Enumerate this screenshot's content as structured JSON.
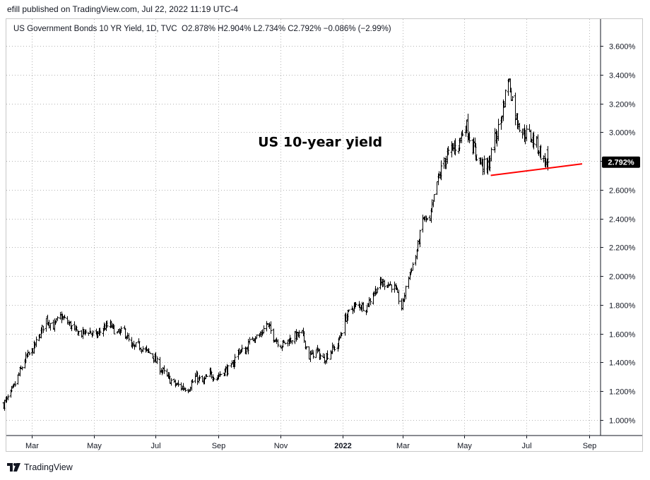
{
  "header": {
    "published_text": "efill published on TradingView.com, Jul 22, 2022 11:19 UTC-4"
  },
  "legend": {
    "symbol_text": "US Government Bonds 10 YR Yield, 1D, TVC",
    "ohlc_text": "O2.878% H2.904% L2.734% C2.792% −0.086% (−2.99%)"
  },
  "footer": {
    "brand": "TradingView",
    "logo_icon": "tradingview-logo-icon"
  },
  "chart_data": {
    "type": "ohlc-bar",
    "symbol": "US Government Bonds 10 YR Yield",
    "interval": "1D",
    "exchange": "TVC",
    "y_unit": "%",
    "ylim": [
      0.9,
      3.7
    ],
    "y_ticks": [
      "1.000%",
      "1.200%",
      "1.400%",
      "1.600%",
      "1.800%",
      "2.000%",
      "2.200%",
      "2.400%",
      "2.600%",
      "2.800%",
      "3.000%",
      "3.200%",
      "3.400%",
      "3.600%"
    ],
    "x_ticks": [
      "Mar",
      "May",
      "Jul",
      "Sep",
      "Nov",
      "2022",
      "Mar",
      "May",
      "Jul",
      "Sep"
    ],
    "x_range": [
      "2021-02-01",
      "2022-09-30"
    ],
    "x_tick_dates": [
      "2021-03-01",
      "2021-05-01",
      "2021-07-01",
      "2021-09-01",
      "2021-11-01",
      "2022-01-01",
      "2022-03-01",
      "2022-05-01",
      "2022-07-01",
      "2022-09-01"
    ],
    "grid": true,
    "last_value": 2.792,
    "last_value_label": "2.792%",
    "series": [
      {
        "name": "US Government Bonds 10 YR Yield",
        "close_path": [
          [
            "2021-02-01",
            1.11
          ],
          [
            "2021-02-08",
            1.18
          ],
          [
            "2021-02-15",
            1.3
          ],
          [
            "2021-02-22",
            1.42
          ],
          [
            "2021-03-01",
            1.48
          ],
          [
            "2021-03-08",
            1.58
          ],
          [
            "2021-03-15",
            1.7
          ],
          [
            "2021-03-22",
            1.65
          ],
          [
            "2021-03-29",
            1.72
          ],
          [
            "2021-04-05",
            1.68
          ],
          [
            "2021-04-12",
            1.62
          ],
          [
            "2021-04-19",
            1.6
          ],
          [
            "2021-04-26",
            1.62
          ],
          [
            "2021-05-03",
            1.58
          ],
          [
            "2021-05-10",
            1.64
          ],
          [
            "2021-05-17",
            1.66
          ],
          [
            "2021-05-24",
            1.6
          ],
          [
            "2021-05-31",
            1.62
          ],
          [
            "2021-06-07",
            1.5
          ],
          [
            "2021-06-14",
            1.52
          ],
          [
            "2021-06-21",
            1.48
          ],
          [
            "2021-06-28",
            1.45
          ],
          [
            "2021-07-05",
            1.36
          ],
          [
            "2021-07-12",
            1.3
          ],
          [
            "2021-07-19",
            1.25
          ],
          [
            "2021-07-26",
            1.23
          ],
          [
            "2021-08-02",
            1.22
          ],
          [
            "2021-08-09",
            1.3
          ],
          [
            "2021-08-16",
            1.26
          ],
          [
            "2021-08-23",
            1.32
          ],
          [
            "2021-08-30",
            1.3
          ],
          [
            "2021-09-06",
            1.34
          ],
          [
            "2021-09-13",
            1.36
          ],
          [
            "2021-09-20",
            1.48
          ],
          [
            "2021-09-27",
            1.48
          ],
          [
            "2021-10-04",
            1.58
          ],
          [
            "2021-10-11",
            1.58
          ],
          [
            "2021-10-18",
            1.67
          ],
          [
            "2021-10-25",
            1.58
          ],
          [
            "2021-11-01",
            1.52
          ],
          [
            "2021-11-08",
            1.55
          ],
          [
            "2021-11-15",
            1.58
          ],
          [
            "2021-11-22",
            1.6
          ],
          [
            "2021-11-29",
            1.44
          ],
          [
            "2021-12-06",
            1.48
          ],
          [
            "2021-12-13",
            1.42
          ],
          [
            "2021-12-20",
            1.48
          ],
          [
            "2021-12-27",
            1.52
          ],
          [
            "2022-01-03",
            1.7
          ],
          [
            "2022-01-10",
            1.78
          ],
          [
            "2022-01-17",
            1.8
          ],
          [
            "2022-01-24",
            1.78
          ],
          [
            "2022-01-31",
            1.88
          ],
          [
            "2022-02-07",
            1.95
          ],
          [
            "2022-02-14",
            1.95
          ],
          [
            "2022-02-21",
            1.92
          ],
          [
            "2022-02-28",
            1.78
          ],
          [
            "2022-03-07",
            2.0
          ],
          [
            "2022-03-14",
            2.14
          ],
          [
            "2022-03-21",
            2.4
          ],
          [
            "2022-03-28",
            2.38
          ],
          [
            "2022-04-04",
            2.65
          ],
          [
            "2022-04-11",
            2.8
          ],
          [
            "2022-04-18",
            2.88
          ],
          [
            "2022-04-25",
            2.92
          ],
          [
            "2022-05-02",
            3.06
          ],
          [
            "2022-05-09",
            2.9
          ],
          [
            "2022-05-16",
            2.8
          ],
          [
            "2022-05-23",
            2.74
          ],
          [
            "2022-05-30",
            2.92
          ],
          [
            "2022-06-06",
            3.1
          ],
          [
            "2022-06-13",
            3.38
          ],
          [
            "2022-06-20",
            3.12
          ],
          [
            "2022-06-27",
            3.0
          ],
          [
            "2022-07-04",
            2.98
          ],
          [
            "2022-07-11",
            2.92
          ],
          [
            "2022-07-18",
            2.8
          ],
          [
            "2022-07-22",
            2.792
          ]
        ]
      }
    ],
    "trendline": {
      "from": [
        "2022-05-27",
        2.7
      ],
      "to": [
        "2022-08-25",
        2.78
      ],
      "color": "#ff0000"
    },
    "annotation": {
      "text": "US 10-year yield",
      "at": [
        "2021-12-10",
        2.9
      ]
    }
  }
}
